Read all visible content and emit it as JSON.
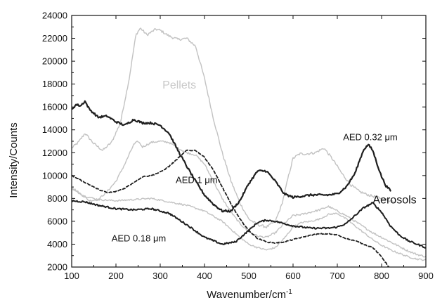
{
  "chart_data": {
    "type": "line",
    "title": "",
    "xlabel": "Wavenumber/cm",
    "xlabel_superscript": "-1",
    "ylabel": "Intensity/Counts",
    "xlim": [
      100,
      900
    ],
    "ylim": [
      2000,
      24000
    ],
    "xticks": [
      100,
      200,
      300,
      400,
      500,
      600,
      700,
      800,
      900
    ],
    "yticks": [
      2000,
      4000,
      6000,
      8000,
      10000,
      12000,
      14000,
      16000,
      18000,
      20000,
      22000,
      24000
    ],
    "grid": false,
    "legend": "none",
    "colors": {
      "dark": "#1e1e1e",
      "light": "#c2c2c2"
    },
    "annotations": [
      {
        "text": "Pellets",
        "x": 305,
        "y": 17600,
        "style": "gray"
      },
      {
        "text": "AED 0.32 μm",
        "x": 713,
        "y": 13100,
        "style": "normal"
      },
      {
        "text": "AED 1 μm",
        "x": 335,
        "y": 9350,
        "style": "normal"
      },
      {
        "text": "Aerosols",
        "x": 780,
        "y": 7550,
        "style": "big"
      },
      {
        "text": "AED 0.18 μm",
        "x": 190,
        "y": 4250,
        "style": "normal"
      }
    ],
    "series": [
      {
        "color": "light",
        "dash": "solid",
        "noise": 110,
        "x": [
          100,
          115,
          130,
          150,
          170,
          190,
          210,
          230,
          245,
          255,
          270,
          290,
          300,
          320,
          340,
          360,
          380,
          400,
          420,
          440,
          460,
          480,
          500,
          520,
          540,
          560,
          575,
          590,
          600,
          615,
          630,
          650,
          670,
          690,
          710,
          730,
          750,
          770,
          790,
          810,
          830
        ],
        "y": [
          12400,
          12900,
          13700,
          12800,
          12200,
          12900,
          14600,
          18500,
          22300,
          22900,
          22300,
          22800,
          22700,
          22200,
          21900,
          22000,
          21300,
          18500,
          15000,
          12000,
          9500,
          7600,
          6200,
          5700,
          5500,
          6000,
          7500,
          10000,
          11500,
          11900,
          11900,
          12000,
          12400,
          11400,
          10200,
          9200,
          8600,
          8300,
          8100,
          7900,
          7700
        ]
      },
      {
        "color": "light",
        "dash": "solid",
        "noise": 80,
        "x": [
          100,
          120,
          140,
          160,
          180,
          200,
          220,
          240,
          250,
          260,
          280,
          300,
          320,
          340,
          360,
          380,
          400,
          420,
          440,
          460,
          480,
          500,
          520,
          540,
          560,
          580,
          600,
          620,
          640,
          660,
          680,
          700,
          720,
          740,
          760,
          780,
          800,
          820,
          840,
          860,
          880,
          900
        ],
        "y": [
          9000,
          8400,
          7800,
          7900,
          8600,
          9500,
          11000,
          12700,
          13000,
          12500,
          12900,
          13000,
          12900,
          12400,
          12000,
          11800,
          11000,
          9500,
          8000,
          6800,
          5800,
          5100,
          4700,
          4600,
          5000,
          5800,
          6500,
          6600,
          6800,
          7000,
          7300,
          6900,
          6500,
          6000,
          5500,
          5000,
          4600,
          4200,
          3800,
          3400,
          3100,
          2900
        ]
      },
      {
        "color": "light",
        "dash": "solid",
        "noise": 70,
        "x": [
          100,
          130,
          160,
          200,
          240,
          280,
          320,
          360,
          400,
          440,
          480,
          500,
          520,
          540,
          560,
          580,
          600,
          620,
          640,
          660,
          680,
          700,
          720,
          740,
          760,
          780,
          800,
          820,
          840,
          860,
          880,
          900
        ],
        "y": [
          8800,
          8200,
          7900,
          7800,
          7900,
          8000,
          7700,
          7400,
          6900,
          6000,
          4600,
          4000,
          3700,
          3500,
          3700,
          4500,
          5500,
          5900,
          6000,
          6200,
          6600,
          6700,
          6200,
          5600,
          5000,
          4400,
          3900,
          3500,
          3200,
          2900,
          2700,
          2600
        ]
      },
      {
        "color": "dark",
        "dash": "solid",
        "noise": 90,
        "width": 2.2,
        "x": [
          100,
          110,
          120,
          130,
          140,
          160,
          180,
          200,
          220,
          240,
          260,
          280,
          300,
          320,
          340,
          360,
          380,
          400,
          420,
          440,
          460,
          480,
          500,
          520,
          540,
          560,
          580,
          600,
          620,
          640,
          660,
          680,
          700,
          720,
          740,
          750,
          760,
          770,
          780,
          790,
          800,
          810,
          820
        ],
        "y": [
          15800,
          16200,
          16100,
          16500,
          15800,
          15100,
          15200,
          14700,
          14400,
          14900,
          14600,
          14600,
          14400,
          13700,
          12200,
          10800,
          9500,
          8300,
          7500,
          6900,
          6900,
          7800,
          9300,
          10400,
          10400,
          9500,
          8400,
          8100,
          8200,
          8300,
          8300,
          8300,
          8400,
          9000,
          10200,
          11300,
          12300,
          12700,
          12200,
          11000,
          9900,
          9100,
          8700
        ]
      },
      {
        "color": "dark",
        "dash": "solid",
        "noise": 70,
        "width": 2.0,
        "x": [
          100,
          130,
          160,
          200,
          240,
          280,
          320,
          360,
          400,
          440,
          470,
          500,
          520,
          540,
          560,
          580,
          600,
          620,
          640,
          660,
          680,
          700,
          720,
          740,
          760,
          780,
          800,
          820,
          840,
          860,
          880,
          900
        ],
        "y": [
          7800,
          7700,
          7400,
          7100,
          7000,
          7100,
          6700,
          5700,
          4600,
          4000,
          4200,
          5200,
          5900,
          6100,
          6000,
          5800,
          5600,
          5500,
          5400,
          5400,
          5400,
          5500,
          5800,
          6500,
          7200,
          7600,
          6800,
          5600,
          4800,
          4300,
          4000,
          3700
        ]
      },
      {
        "color": "dark",
        "dash": "dashed",
        "noise": 40,
        "width": 1.8,
        "x": [
          100,
          120,
          140,
          160,
          180,
          200,
          220,
          240,
          260,
          280,
          300,
          320,
          340,
          360,
          380,
          400,
          420,
          440,
          460,
          480,
          500,
          520,
          540,
          560,
          580,
          600,
          620,
          640,
          660,
          680,
          700,
          720,
          740,
          760,
          780,
          800,
          820
        ],
        "y": [
          10000,
          9600,
          9200,
          8800,
          8500,
          8600,
          8900,
          9400,
          9900,
          10000,
          10300,
          10800,
          11500,
          12200,
          12200,
          11600,
          10500,
          9000,
          7500,
          6200,
          5200,
          4500,
          4200,
          4100,
          4200,
          4400,
          4600,
          4800,
          4900,
          4900,
          4800,
          4500,
          4300,
          4000,
          3700,
          2900,
          1800
        ]
      }
    ]
  }
}
